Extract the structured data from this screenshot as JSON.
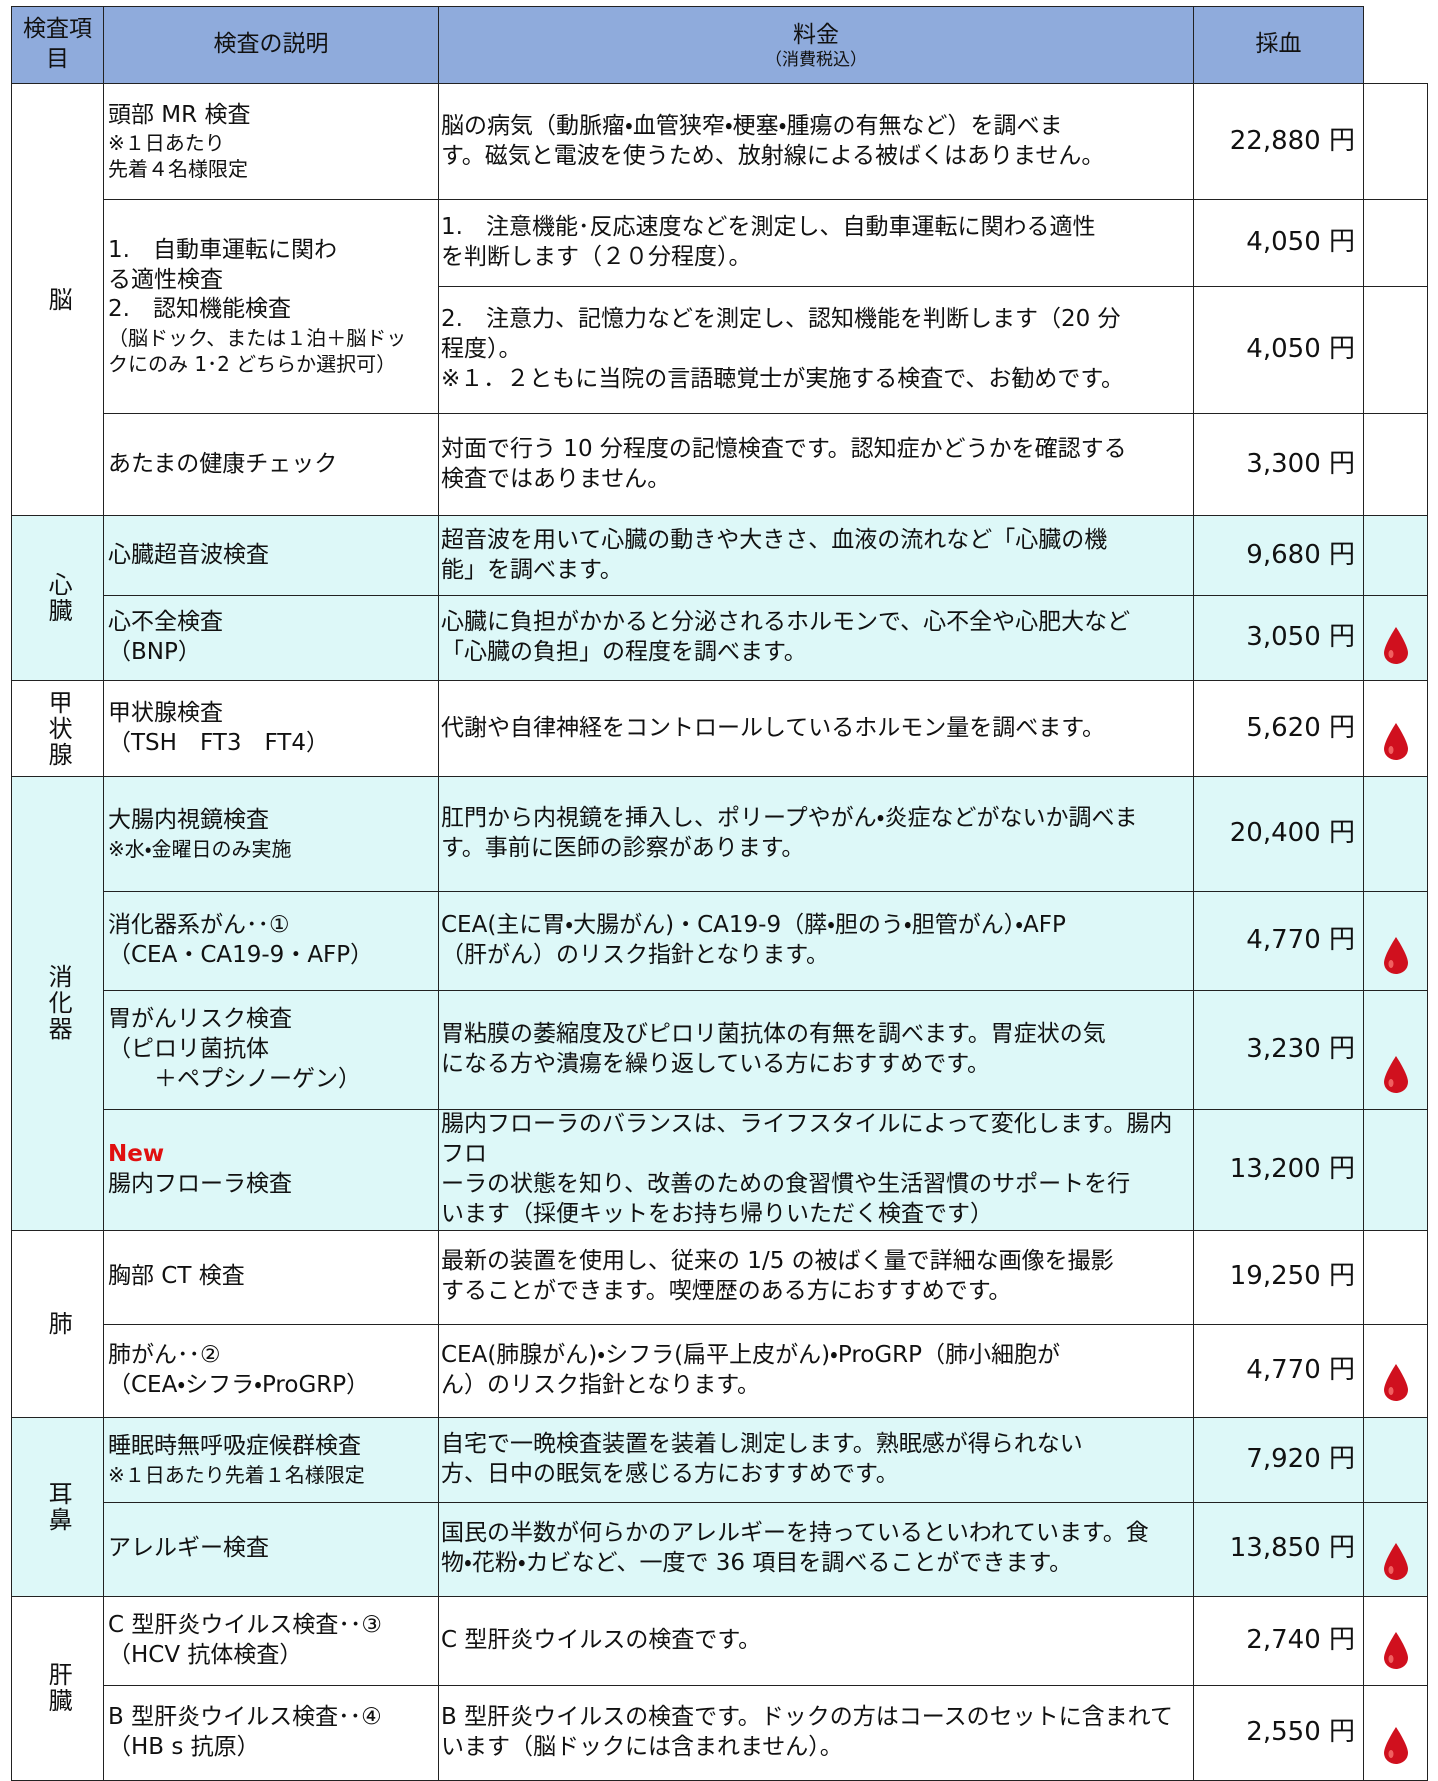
{
  "header": {
    "item": "検査項目",
    "description": "検査の説明",
    "price": "料金",
    "price_note": "（消費税込）",
    "blood": "採血"
  },
  "sections": [
    {
      "category": "脳",
      "color": "#ffffff",
      "items": [
        {
          "lines": [
            "頭部 MR 検査"
          ],
          "notes": [
            "※１日あたり",
            "先着４名様限定"
          ],
          "tests": [
            {
              "description": [
                "脳の病気（動脈瘤・血管狭窄・梗塞・腫瘍の有無など）を調べま",
                "す。磁気と電波を使うため、放射線による被ばくはありません。"
              ],
              "price": "22,880 円",
              "blood": false
            }
          ]
        },
        {
          "lines": [
            "1.　自動車運転に関わ",
            "る適性検査",
            "2.　認知機能検査"
          ],
          "notes": [
            "（脳ドック、または１泊＋脳ドッ",
            "クにのみ 1･2 どちらか選択可）"
          ],
          "tests": [
            {
              "description": [
                "1.　注意機能･反応速度などを測定し、自動車運転に関わる適性",
                "を判断します（２０分程度）。"
              ],
              "price": "4,050 円",
              "blood": false
            },
            {
              "description": [
                "2.　注意力、記憶力などを測定し、認知機能を判断します（20 分",
                "程度）。",
                "※１．２ともに当院の言語聴覚士が実施する検査で、お勧めです。"
              ],
              "price": "4,050 円",
              "blood": false
            }
          ]
        },
        {
          "lines": [
            "あたまの健康チェック"
          ],
          "tests": [
            {
              "description": [
                "対面で行う 10 分程度の記憶検査です。認知症かどうかを確認する",
                "検査ではありません。"
              ],
              "price": "3,300 円",
              "blood": false
            }
          ]
        }
      ]
    },
    {
      "category": "心臓",
      "color": "#ddf8f8",
      "items": [
        {
          "lines": [
            "心臓超音波検査"
          ],
          "tests": [
            {
              "description": [
                "超音波を用いて心臓の動きや大きさ、血液の流れなど「心臓の機",
                "能」を調べます。"
              ],
              "price": "9,680 円",
              "blood": false
            }
          ]
        },
        {
          "lines": [
            "心不全検査",
            "（BNP）"
          ],
          "tests": [
            {
              "description": [
                "心臓に負担がかかると分泌されるホルモンで、心不全や心肥大など",
                "「心臓の負担」の程度を調べます。"
              ],
              "price": "3,050 円",
              "blood": true
            }
          ]
        }
      ]
    },
    {
      "category": "甲状腺",
      "color": "#ffffff",
      "items": [
        {
          "lines": [
            "甲状腺検査",
            "（TSH　FT3　FT4）"
          ],
          "tests": [
            {
              "description": [
                "代謝や自律神経をコントロールしているホルモン量を調べます。"
              ],
              "price": "5,620 円",
              "blood": true
            }
          ]
        }
      ]
    },
    {
      "category": "消化器",
      "color": "#ddf8f8",
      "items": [
        {
          "lines": [
            "大腸内視鏡検査"
          ],
          "notes": [
            "※水・金曜日のみ実施"
          ],
          "tests": [
            {
              "description": [
                "肛門から内視鏡を挿入し、ポリープやがん・炎症などがないか調べま",
                "す。事前に医師の診察があります。"
              ],
              "price": "20,400 円",
              "blood": false
            }
          ]
        },
        {
          "lines": [
            "消化器系がん･･①",
            "（CEA・CA19-9・AFP）"
          ],
          "tests": [
            {
              "description": [
                "CEA(主に胃・大腸がん)・CA19-9（膵・胆のう・胆管がん）・AFP",
                "（肝がん）のリスク指針となります。"
              ],
              "price": "4,770 円",
              "blood": true
            }
          ]
        },
        {
          "lines": [
            "胃がんリスク検査",
            "（ピロリ菌抗体",
            "　　＋ペプシノーゲン）"
          ],
          "tests": [
            {
              "description": [
                "胃粘膜の萎縮度及びピロリ菌抗体の有無を調べます。胃症状の気",
                "になる方や潰瘍を繰り返している方におすすめです。"
              ],
              "price": "3,230 円",
              "blood": true
            }
          ]
        },
        {
          "badge": "New",
          "lines": [
            "腸内フローラ検査"
          ],
          "tests": [
            {
              "description": [
                "腸内フローラのバランスは、ライフスタイルによって変化します。腸内フロ",
                "ーラの状態を知り、改善のための食習慣や生活習慣のサポートを行",
                "います（採便キットをお持ち帰りいただく検査です）"
              ],
              "price": "13,200 円",
              "blood": false
            }
          ]
        }
      ]
    },
    {
      "category": "肺",
      "color": "#ffffff",
      "items": [
        {
          "lines": [
            "胸部 CT 検査"
          ],
          "tests": [
            {
              "description": [
                "最新の装置を使用し、従来の 1/5 の被ばく量で詳細な画像を撮影",
                "することができます。喫煙歴のある方におすすめです。"
              ],
              "price": "19,250 円",
              "blood": false
            }
          ]
        },
        {
          "lines": [
            "肺がん･･②",
            "（CEA・シフラ・ProGRP）"
          ],
          "tests": [
            {
              "description": [
                "CEA(肺腺がん)・シフラ(扁平上皮がん)・ProGRP（肺小細胞が",
                "ん）のリスク指針となります。"
              ],
              "price": "4,770 円",
              "blood": true
            }
          ]
        }
      ]
    },
    {
      "category": "耳鼻",
      "color": "#ddf8f8",
      "items": [
        {
          "lines": [
            "睡眠時無呼吸症候群検査"
          ],
          "notes": [
            "※１日あたり先着１名様限定"
          ],
          "tests": [
            {
              "description": [
                "自宅で一晩検査装置を装着し測定します。熟眠感が得られない",
                "方、日中の眠気を感じる方におすすめです。"
              ],
              "price": "7,920 円",
              "blood": false
            }
          ]
        },
        {
          "lines": [
            "アレルギー検査"
          ],
          "tests": [
            {
              "description": [
                "国民の半数が何らかのアレルギーを持っているといわれています。食",
                "物・花粉・カビなど、一度で 36 項目を調べることができます。"
              ],
              "price": "13,850 円",
              "blood": true
            }
          ]
        }
      ]
    },
    {
      "category": "肝臓",
      "color": "#ffffff",
      "items": [
        {
          "lines": [
            "C 型肝炎ウイルス検査･･③",
            "（HCV 抗体検査）"
          ],
          "tests": [
            {
              "description": [
                "C 型肝炎ウイルスの検査です。"
              ],
              "price": "2,740 円",
              "blood": true
            }
          ]
        },
        {
          "lines": [
            "B 型肝炎ウイルス検査･･④",
            "（HB s 抗原）"
          ],
          "tests": [
            {
              "description": [
                "B 型肝炎ウイルスの検査です。ドックの方はコースのセットに含まれて",
                "います（脳ドックには含まれません）。"
              ],
              "price": "2,550 円",
              "blood": true
            }
          ]
        }
      ]
    }
  ]
}
